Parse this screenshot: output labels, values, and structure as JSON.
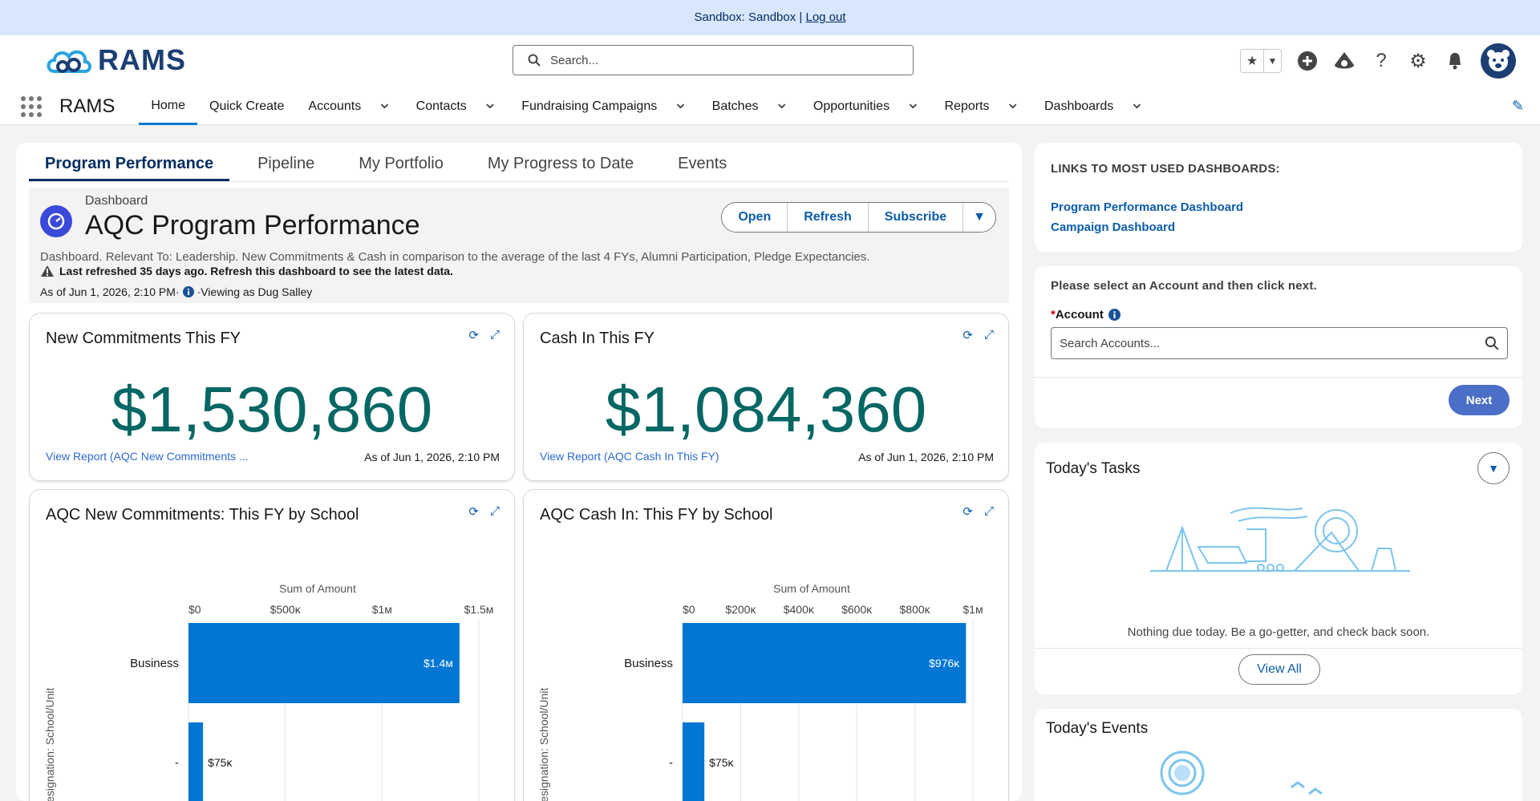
{
  "sandbox": {
    "label": "Sandbox: Sandbox |",
    "logout": "Log out"
  },
  "header": {
    "logo": "RAMS",
    "search_placeholder": "Search...",
    "app_name": "RAMS"
  },
  "nav": [
    {
      "label": "Home",
      "active": true,
      "dropdown": false
    },
    {
      "label": "Quick Create",
      "dropdown": false
    },
    {
      "label": "Accounts",
      "dropdown": true
    },
    {
      "label": "Contacts",
      "dropdown": true
    },
    {
      "label": "Fundraising Campaigns",
      "dropdown": true
    },
    {
      "label": "Batches",
      "dropdown": true
    },
    {
      "label": "Opportunities",
      "dropdown": true
    },
    {
      "label": "Reports",
      "dropdown": true
    },
    {
      "label": "Dashboards",
      "dropdown": true
    }
  ],
  "tabs": [
    "Program Performance",
    "Pipeline",
    "My Portfolio",
    "My Progress to Date",
    "Events"
  ],
  "dashboard": {
    "kicker": "Dashboard",
    "title": "AQC Program Performance",
    "description": "Dashboard. Relevant To: Leadership. New Commitments & Cash in comparison to the average of the last 4 FYs, Alumni Participation, Pledge Expectancies.",
    "warning": "Last refreshed 35 days ago. Refresh this dashboard to see the latest data.",
    "as_of": "As of Jun 1, 2026, 2:10 PM·",
    "viewing": "·Viewing as Dug Salley",
    "buttons": {
      "open": "Open",
      "refresh": "Refresh",
      "subscribe": "Subscribe"
    }
  },
  "widgets": {
    "commitments": {
      "title": "New Commitments This FY",
      "value": "$1,530,860",
      "link": "View Report (AQC New Commitments ...",
      "as_of": "As of Jun 1, 2026, 2:10 PM"
    },
    "cash": {
      "title": "Cash In This FY",
      "value": "$1,084,360",
      "link": "View Report (AQC Cash In This FY)",
      "as_of": "As of Jun 1, 2026, 2:10 PM"
    }
  },
  "chart_data": [
    {
      "type": "bar",
      "title": "AQC New Commitments: This FY by School",
      "xlabel": "Sum of Amount",
      "ylabel": "Designation: School/Unit",
      "x_ticks": [
        "$0",
        "$500κ",
        "$1м",
        "$1.5м"
      ],
      "xlim": [
        0,
        1500000
      ],
      "categories": [
        "Business",
        "-"
      ],
      "values": [
        1400000,
        75000
      ],
      "labels": [
        "$1.4м",
        "$75κ"
      ],
      "color": "#0176d3"
    },
    {
      "type": "bar",
      "title": "AQC Cash In: This FY by School",
      "xlabel": "Sum of Amount",
      "ylabel": "Designation: School/Unit",
      "x_ticks": [
        "$0",
        "$200κ",
        "$400κ",
        "$600κ",
        "$800κ",
        "$1м"
      ],
      "xlim": [
        0,
        1000000
      ],
      "categories": [
        "Business",
        "-"
      ],
      "values": [
        976000,
        75000
      ],
      "labels": [
        "$976κ",
        "$75κ"
      ],
      "color": "#0176d3"
    }
  ],
  "sidebar": {
    "links_heading": "LINKS TO MOST USED DASHBOARDS:",
    "links": [
      "Program Performance Dashboard",
      "Campaign Dashboard"
    ],
    "account_prompt": "Please select an Account and then click next.",
    "account_label": "Account",
    "account_placeholder": "Search Accounts...",
    "next": "Next",
    "tasks_title": "Today's Tasks",
    "tasks_empty": "Nothing due today. Be a go-getter, and check back soon.",
    "view_all": "View All",
    "events_title": "Today's Events"
  }
}
